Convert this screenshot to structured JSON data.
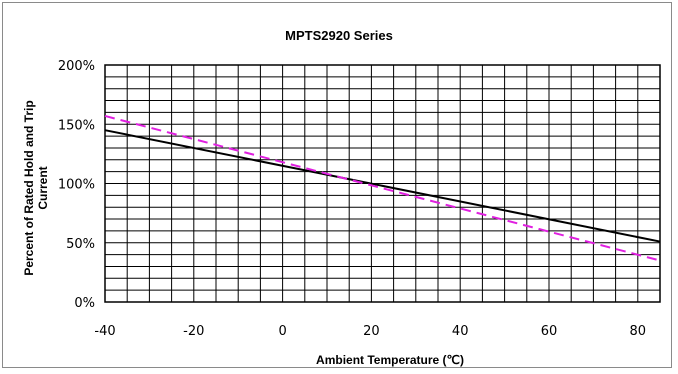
{
  "chart_data": {
    "type": "line",
    "title": "MPTS2920 Series",
    "xlabel": "Ambient Temperature (℃)",
    "ylabel_lines": [
      "Percent of Rated Hold  and Trip",
      "Current"
    ],
    "xlim": [
      -40,
      85
    ],
    "ylim": [
      0,
      200
    ],
    "x_ticks": [
      -40,
      -20,
      0,
      20,
      40,
      60,
      80
    ],
    "y_ticks": [
      0,
      50,
      100,
      150,
      200
    ],
    "y_tick_labels": [
      "0%",
      "50%",
      "100%",
      "150%",
      "200%"
    ],
    "grid": true,
    "series": [
      {
        "color": "#000000",
        "style": "solid",
        "x": [
          -40,
          85
        ],
        "y": [
          145,
          51
        ]
      },
      {
        "color": "#e020e0",
        "style": "dashed",
        "x": [
          -40,
          85
        ],
        "y": [
          157,
          35
        ]
      }
    ]
  }
}
